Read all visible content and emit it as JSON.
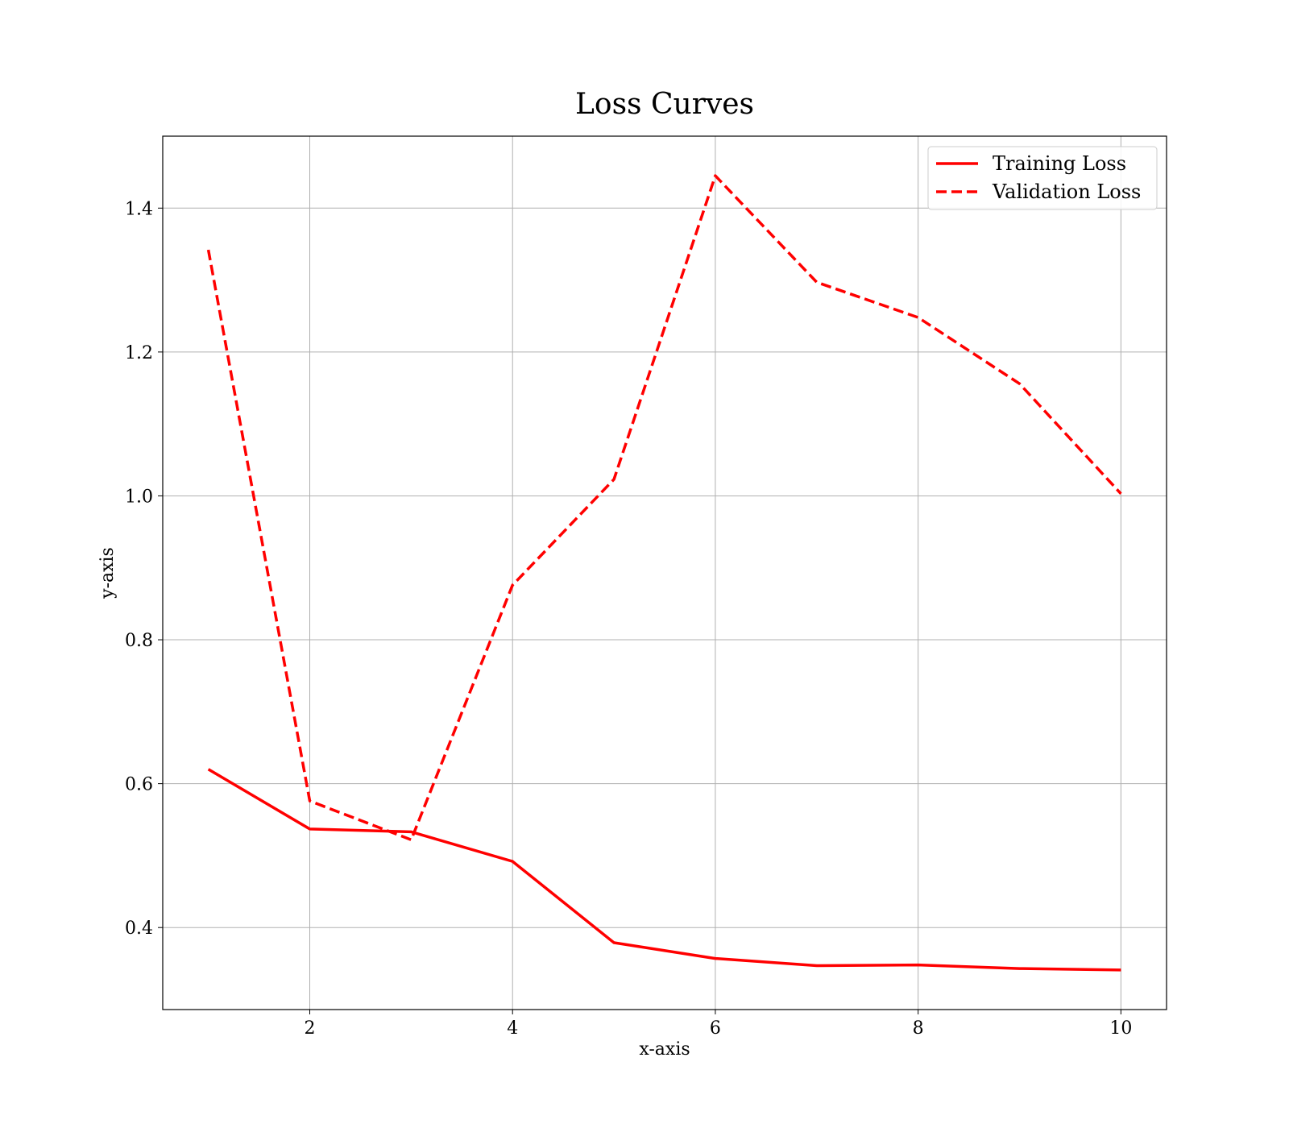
{
  "chart_data": {
    "type": "line",
    "title": "Loss Curves",
    "xlabel": "x-axis",
    "ylabel": "y-axis",
    "xlim": [
      0.55,
      10.45
    ],
    "ylim": [
      0.286,
      1.5
    ],
    "xticks": [
      2,
      4,
      6,
      8,
      10
    ],
    "yticks": [
      0.4,
      0.6,
      0.8,
      1.0,
      1.2,
      1.4
    ],
    "xtick_labels": [
      "2",
      "4",
      "6",
      "8",
      "10"
    ],
    "ytick_labels": [
      "0.4",
      "0.6",
      "0.8",
      "1.0",
      "1.2",
      "1.4"
    ],
    "grid": true,
    "legend_position": "top-right",
    "x": [
      1,
      2,
      3,
      4,
      5,
      6,
      7,
      8,
      9,
      10
    ],
    "series": [
      {
        "name": "Training Loss",
        "style": "solid",
        "color": "#ff0000",
        "values": [
          0.62,
          0.537,
          0.533,
          0.492,
          0.379,
          0.357,
          0.347,
          0.348,
          0.343,
          0.341
        ]
      },
      {
        "name": "Validation Loss",
        "style": "dashed",
        "color": "#ff0000",
        "values": [
          1.342,
          0.576,
          0.522,
          0.876,
          1.023,
          1.445,
          1.297,
          1.248,
          1.156,
          1.003
        ]
      }
    ]
  }
}
